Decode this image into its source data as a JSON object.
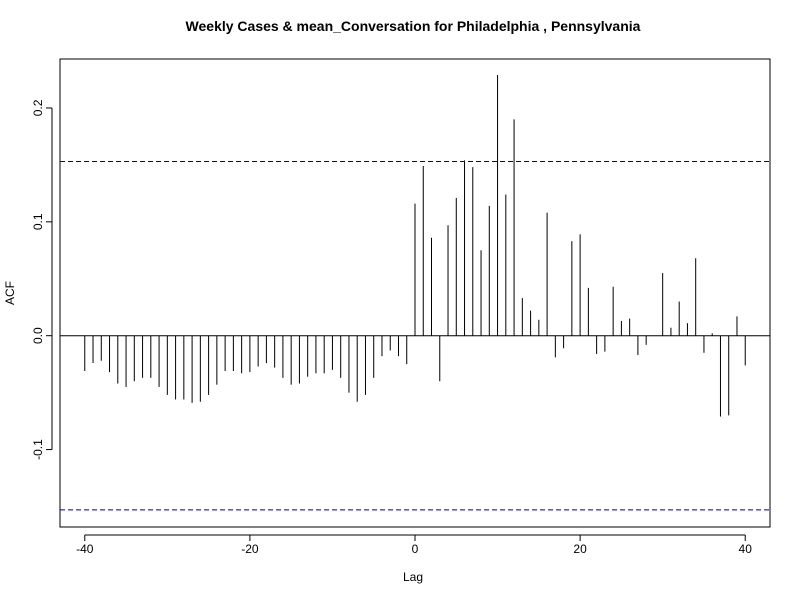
{
  "chart_data": {
    "type": "bar",
    "title": "Weekly Cases & mean_Conversation for Philadelphia , Pennsylvania",
    "xlabel": "Lag",
    "ylabel": "ACF",
    "xlim": [
      -43,
      43
    ],
    "ylim": [
      -0.168,
      0.243
    ],
    "x_ticks": [
      -40,
      -20,
      0,
      20,
      40
    ],
    "x_tick_labels": [
      "-40",
      "-20",
      "0",
      "20",
      "40"
    ],
    "y_ticks": [
      -0.1,
      0.0,
      0.1,
      0.2
    ],
    "y_tick_labels": [
      "-0.1",
      "0.0",
      "0.1",
      "0.2"
    ],
    "confidence_bounds": [
      0.153,
      -0.153
    ],
    "bound_color": "#00008b",
    "lags": [
      -40,
      -39,
      -38,
      -37,
      -36,
      -35,
      -34,
      -33,
      -32,
      -31,
      -30,
      -29,
      -28,
      -27,
      -26,
      -25,
      -24,
      -23,
      -22,
      -21,
      -20,
      -19,
      -18,
      -17,
      -16,
      -15,
      -14,
      -13,
      -12,
      -11,
      -10,
      -9,
      -8,
      -7,
      -6,
      -5,
      -4,
      -3,
      -2,
      -1,
      0,
      1,
      2,
      3,
      4,
      5,
      6,
      7,
      8,
      9,
      10,
      11,
      12,
      13,
      14,
      15,
      16,
      17,
      18,
      19,
      20,
      21,
      22,
      23,
      24,
      25,
      26,
      27,
      28,
      29,
      30,
      31,
      32,
      33,
      34,
      35,
      36,
      37,
      38,
      39,
      40
    ],
    "values": [
      -0.031,
      -0.024,
      -0.022,
      -0.032,
      -0.042,
      -0.045,
      -0.04,
      -0.037,
      -0.037,
      -0.045,
      -0.052,
      -0.056,
      -0.056,
      -0.059,
      -0.058,
      -0.052,
      -0.043,
      -0.031,
      -0.031,
      -0.033,
      -0.032,
      -0.027,
      -0.024,
      -0.028,
      -0.037,
      -0.043,
      -0.042,
      -0.036,
      -0.033,
      -0.033,
      -0.03,
      -0.037,
      -0.05,
      -0.058,
      -0.052,
      -0.037,
      -0.018,
      -0.013,
      -0.018,
      -0.025,
      0.116,
      0.149,
      0.086,
      -0.04,
      0.097,
      0.121,
      0.154,
      0.148,
      0.075,
      0.114,
      0.229,
      0.124,
      0.19,
      0.033,
      0.022,
      0.014,
      0.108,
      -0.019,
      -0.011,
      0.083,
      0.089,
      0.042,
      -0.016,
      -0.014,
      0.043,
      0.013,
      0.015,
      -0.017,
      -0.008,
      0.0,
      0.055,
      0.007,
      0.03,
      0.011,
      0.068,
      -0.015,
      0.002,
      -0.071,
      -0.07,
      0.017,
      -0.026
    ]
  }
}
